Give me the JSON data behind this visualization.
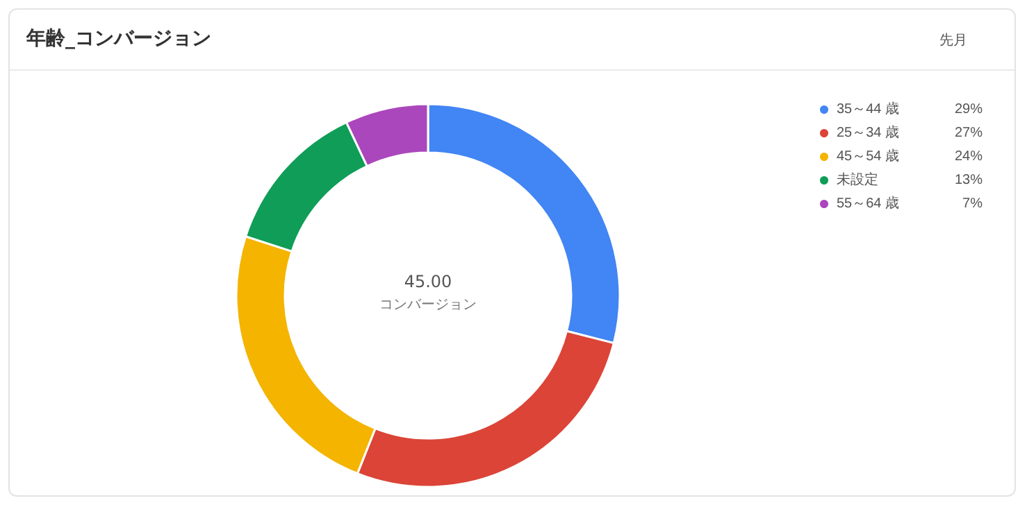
{
  "chart_data": {
    "type": "donut",
    "title": "年齢_コンバージョン",
    "subtitle": "先月",
    "categories": [
      "35～44 歳",
      "25～34 歳",
      "45～54 歳",
      "未設定",
      "55～64 歳"
    ],
    "values": [
      29,
      27,
      24,
      13,
      7
    ],
    "value_labels": [
      "29%",
      "27%",
      "24%",
      "13%",
      "7%"
    ],
    "colors": [
      "#4285f4",
      "#db4437",
      "#f4b400",
      "#0f9d58",
      "#ab47bc"
    ],
    "annotations": [
      "45.00",
      "コンバージョン"
    ],
    "legend": "top right"
  }
}
